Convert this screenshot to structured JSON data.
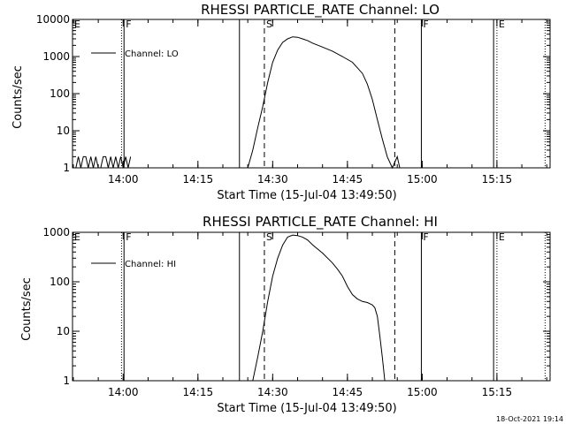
{
  "footer": {
    "timestamp": "18-Oct-2021 19:14"
  },
  "chart_data": [
    {
      "type": "line",
      "title": "RHESSI PARTICLE_RATE Channel: LO",
      "xlabel": "Start Time (15-Jul-04 13:49:50)",
      "ylabel": "Counts/sec",
      "yscale": "log",
      "xlim": [
        "13:49:50",
        "15:25:40"
      ],
      "ylim": [
        1,
        10000
      ],
      "xticks": [
        "14:00",
        "14:15",
        "14:30",
        "14:45",
        "15:00",
        "15:15"
      ],
      "yticks": [
        "1",
        "10",
        "100",
        "1000",
        "10000"
      ],
      "legend": {
        "position": "top-left",
        "label": "Channel: LO"
      },
      "flags": [
        {
          "label": "E",
          "time": "13:49:50",
          "style": "dotted"
        },
        {
          "label": "F",
          "time": "14:00:10",
          "style": "solid"
        },
        {
          "label": "S",
          "time": "14:28:20",
          "style": "dashed"
        },
        {
          "label": "F",
          "time": "14:59:50",
          "style": "solid"
        },
        {
          "label": "E",
          "time": "15:15:00",
          "style": "dotted"
        }
      ],
      "extra_lines": [
        {
          "time": "13:59:40",
          "style": "dotted"
        },
        {
          "time": "14:23:20",
          "style": "solid"
        },
        {
          "time": "14:54:30",
          "style": "dashed"
        },
        {
          "time": "15:14:20",
          "style": "solid"
        },
        {
          "time": "15:24:40",
          "style": "dotted"
        }
      ],
      "series": [
        {
          "name": "Channel: LO",
          "x": [
            "13:50:30",
            "13:51:00",
            "13:51:30",
            "13:52:00",
            "13:52:30",
            "13:53:00",
            "13:53:30",
            "13:54:00",
            "13:54:30",
            "13:55:00",
            "13:55:30",
            "13:56:00",
            "13:56:30",
            "13:57:00",
            "13:57:30",
            "13:58:00",
            "13:58:30",
            "13:59:00",
            "13:59:30",
            "14:00:00",
            "14:00:30",
            "14:01:00",
            "14:01:30",
            "14:25:00",
            "14:26:00",
            "14:27:00",
            "14:28:00",
            "14:29:00",
            "14:30:00",
            "14:31:00",
            "14:32:00",
            "14:33:00",
            "14:34:00",
            "14:35:00",
            "14:36:00",
            "14:37:00",
            "14:38:00",
            "14:40:00",
            "14:42:00",
            "14:44:00",
            "14:46:00",
            "14:48:00",
            "14:49:00",
            "14:50:00",
            "14:51:00",
            "14:52:00",
            "14:53:00",
            "14:54:00",
            "14:55:00",
            "14:55:30"
          ],
          "y": [
            1,
            2,
            1,
            2,
            2,
            1,
            2,
            1,
            2,
            1,
            1,
            2,
            2,
            1,
            2,
            1,
            2,
            1,
            2,
            1,
            2,
            1,
            2,
            1,
            3,
            12,
            45,
            200,
            700,
            1500,
            2400,
            3000,
            3400,
            3300,
            3000,
            2700,
            2300,
            1800,
            1400,
            1000,
            700,
            350,
            180,
            70,
            20,
            6,
            2,
            1,
            2,
            1
          ]
        }
      ]
    },
    {
      "type": "line",
      "title": "RHESSI PARTICLE_RATE Channel: HI",
      "xlabel": "Start Time (15-Jul-04 13:49:50)",
      "ylabel": "Counts/sec",
      "yscale": "log",
      "xlim": [
        "13:49:50",
        "15:25:40"
      ],
      "ylim": [
        1,
        1000
      ],
      "xticks": [
        "14:00",
        "14:15",
        "14:30",
        "14:45",
        "15:00",
        "15:15"
      ],
      "yticks": [
        "1",
        "10",
        "100",
        "1000"
      ],
      "legend": {
        "position": "top-left",
        "label": "Channel: HI"
      },
      "flags": [
        {
          "label": "E",
          "time": "13:49:50",
          "style": "dotted"
        },
        {
          "label": "F",
          "time": "14:00:10",
          "style": "solid"
        },
        {
          "label": "S",
          "time": "14:28:20",
          "style": "dashed"
        },
        {
          "label": "F",
          "time": "14:59:50",
          "style": "solid"
        },
        {
          "label": "E",
          "time": "15:15:00",
          "style": "dotted"
        }
      ],
      "extra_lines": [
        {
          "time": "13:59:40",
          "style": "dotted"
        },
        {
          "time": "14:23:20",
          "style": "solid"
        },
        {
          "time": "14:54:30",
          "style": "dashed"
        },
        {
          "time": "15:14:20",
          "style": "solid"
        },
        {
          "time": "15:24:40",
          "style": "dotted"
        }
      ],
      "series": [
        {
          "name": "Channel: HI",
          "x": [
            "14:26:00",
            "14:27:00",
            "14:28:00",
            "14:29:00",
            "14:30:00",
            "14:31:00",
            "14:32:00",
            "14:33:00",
            "14:34:00",
            "14:35:00",
            "14:36:00",
            "14:37:00",
            "14:38:00",
            "14:40:00",
            "14:42:00",
            "14:43:00",
            "14:44:00",
            "14:45:00",
            "14:46:00",
            "14:47:00",
            "14:48:00",
            "14:49:00",
            "14:49:30",
            "14:50:00",
            "14:50:30",
            "14:51:00",
            "14:51:30",
            "14:52:00",
            "14:52:30"
          ],
          "y": [
            1,
            3,
            10,
            40,
            130,
            300,
            550,
            800,
            880,
            860,
            800,
            700,
            560,
            380,
            240,
            180,
            130,
            80,
            55,
            45,
            40,
            38,
            36,
            34,
            30,
            20,
            8,
            3,
            1
          ]
        }
      ]
    }
  ]
}
